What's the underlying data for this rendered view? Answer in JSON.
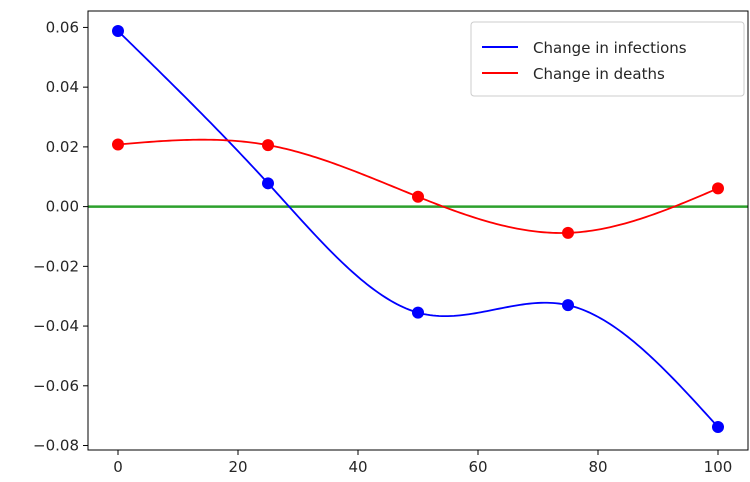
{
  "chart_data": {
    "type": "line",
    "title": "",
    "xlabel": "",
    "ylabel": "",
    "xlim": [
      -5,
      105
    ],
    "ylim": [
      -0.0815,
      0.0655
    ],
    "x_ticks": [
      0,
      20,
      40,
      60,
      80,
      100
    ],
    "x_tick_labels": [
      "0",
      "20",
      "40",
      "60",
      "80",
      "100"
    ],
    "y_ticks": [
      0.06,
      0.04,
      0.02,
      0.0,
      -0.02,
      -0.04,
      -0.06,
      -0.08
    ],
    "y_tick_labels": [
      "0.06",
      "0.04",
      "0.02",
      "0.00",
      "−0.02",
      "−0.04",
      "−0.06",
      "−0.08"
    ],
    "x": [
      0,
      25,
      50,
      75,
      100
    ],
    "series": [
      {
        "name": "Change in infections",
        "color": "#0000ff",
        "values": [
          0.0588,
          0.0078,
          -0.0355,
          -0.033,
          -0.0738
        ]
      },
      {
        "name": "Change in deaths",
        "color": "#ff0000",
        "values": [
          0.0208,
          0.0206,
          0.0033,
          -0.0088,
          0.0061
        ]
      }
    ],
    "reference_line": {
      "y": 0,
      "color": "#2ca02c"
    },
    "legend": {
      "placement": "top-right"
    },
    "grid": false
  }
}
